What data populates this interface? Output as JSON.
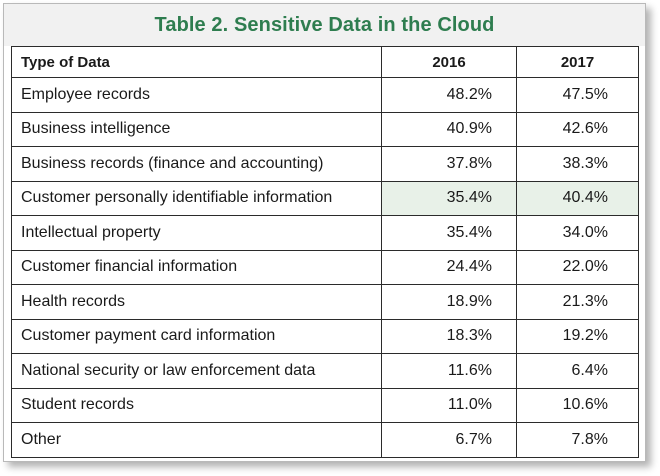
{
  "title": "Table 2. Sensitive Data in the Cloud",
  "colors": {
    "title_text": "#2e7d4f",
    "title_bg": "#f1f1f1",
    "highlight_bg": "#e8f1e8"
  },
  "table": {
    "headers": [
      "Type of Data",
      "2016",
      "2017"
    ],
    "rows": [
      {
        "type": "Employee records",
        "y2016": "48.2%",
        "y2017": "47.5%"
      },
      {
        "type": "Business intelligence",
        "y2016": "40.9%",
        "y2017": "42.6%"
      },
      {
        "type": "Business records (finance and accounting)",
        "y2016": "37.8%",
        "y2017": "38.3%"
      },
      {
        "type": "Customer personally identifiable information",
        "y2016": "35.4%",
        "y2017": "40.4%"
      },
      {
        "type": "Intellectual property",
        "y2016": "35.4%",
        "y2017": "34.0%"
      },
      {
        "type": "Customer financial information",
        "y2016": "24.4%",
        "y2017": "22.0%"
      },
      {
        "type": "Health records",
        "y2016": "18.9%",
        "y2017": "21.3%"
      },
      {
        "type": "Customer payment card information",
        "y2016": "18.3%",
        "y2017": "19.2%"
      },
      {
        "type": "National security or law enforcement data",
        "y2016": "11.6%",
        "y2017": "6.4%"
      },
      {
        "type": "Student records",
        "y2016": "11.0%",
        "y2017": "10.6%"
      },
      {
        "type": "Other",
        "y2016": "6.7%",
        "y2017": "7.8%"
      }
    ],
    "highlighted_row": 3
  }
}
